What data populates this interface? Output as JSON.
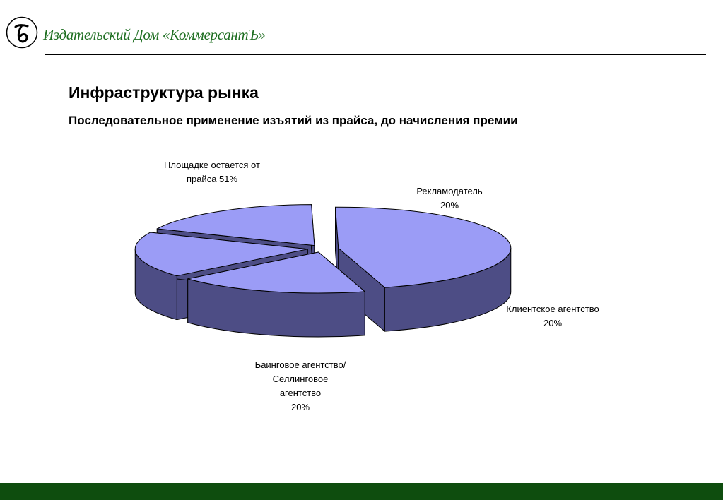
{
  "header": {
    "brand": "Издательский Дом «КоммерсантЪ»",
    "colors": {
      "brand_text": "#1f6f22",
      "footer_bar": "#0e4d0e"
    }
  },
  "slide": {
    "title": "Инфраструктура рынка",
    "subtitle": "Последовательное применение изъятий из прайса,  до начисления премии"
  },
  "chart_data": {
    "type": "pie",
    "style": "3d exploded",
    "colors": {
      "top": "#9b9cf6",
      "side": "#4d4d85"
    },
    "slices": [
      {
        "label_lines": [
          "Площадке остается от",
          "прайса 51%"
        ],
        "value": 51
      },
      {
        "label_lines": [
          "Рекламодатель",
          "20%"
        ],
        "value": 20
      },
      {
        "label_lines": [
          "Клиентское агентство",
          "20%"
        ],
        "value": 20
      },
      {
        "label_lines": [
          "Баинговое агентство/",
          "Селлинговое",
          "агентство",
          "20%"
        ],
        "value": 20
      }
    ]
  }
}
